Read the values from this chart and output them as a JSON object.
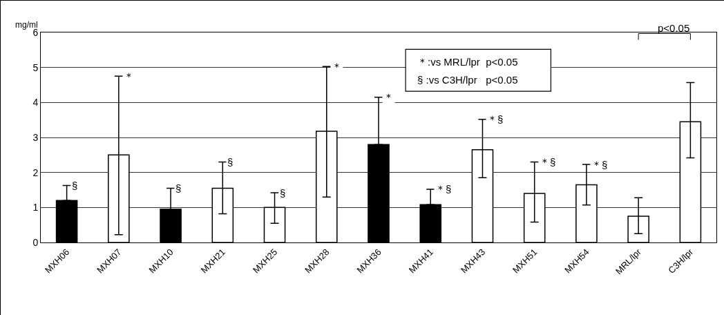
{
  "chart_data": {
    "type": "bar",
    "ylabel": "mg/ml",
    "categories": [
      "MXH06",
      "MXH07",
      "MXH10",
      "MXH21",
      "MXH25",
      "MXH28",
      "MXH36",
      "MXH41",
      "MXH43",
      "MXH51",
      "MXH54",
      "MRL/lpr",
      "C3H/lpr"
    ],
    "values": [
      1.2,
      2.5,
      0.95,
      1.55,
      1.0,
      3.18,
      2.8,
      1.08,
      2.65,
      1.4,
      1.65,
      0.75,
      3.45
    ],
    "colors": [
      "#000000",
      "#ffffff",
      "#000000",
      "#ffffff",
      "#ffffff",
      "#ffffff",
      "#000000",
      "#000000",
      "#ffffff",
      "#ffffff",
      "#ffffff",
      "#ffffff",
      "#ffffff"
    ],
    "errors": [
      [
        1.2,
        1.63
      ],
      [
        0.22,
        4.75
      ],
      [
        0.95,
        1.55
      ],
      [
        0.82,
        2.3
      ],
      [
        0.55,
        1.42
      ],
      [
        1.3,
        5.03
      ],
      [
        2.8,
        4.15
      ],
      [
        1.08,
        1.52
      ],
      [
        1.85,
        3.52
      ],
      [
        0.58,
        2.3
      ],
      [
        1.07,
        2.23
      ],
      [
        0.25,
        1.28
      ],
      [
        2.42,
        4.57
      ]
    ],
    "ylim": [
      0,
      6
    ],
    "yticks": [
      0,
      1,
      2,
      3,
      4,
      5,
      6
    ],
    "grid": "y",
    "annotations": [
      "＊:vs MRL/lpr  p<0.05",
      "§ :vs C3H/lpr   p<0.05",
      "p<0.05",
      {
        "text": "§",
        "x": "MXH06",
        "y": 1.63
      },
      {
        "text": "＊",
        "x": "MXH07",
        "y": 4.75
      },
      {
        "text": "§",
        "x": "MXH10",
        "y": 1.55
      },
      {
        "text": "§",
        "x": "MXH21",
        "y": 2.3
      },
      {
        "text": "§",
        "x": "MXH25",
        "y": 1.42
      },
      {
        "text": "＊",
        "x": "MXH28",
        "y": 5.03
      },
      {
        "text": "＊",
        "x": "MXH36",
        "y": 4.15
      },
      {
        "text": "＊§",
        "x": "MXH41",
        "y": 1.52
      },
      {
        "text": "＊§",
        "x": "MXH43",
        "y": 3.52
      },
      {
        "text": "＊§",
        "x": "MXH51",
        "y": 2.3
      },
      {
        "text": "＊§",
        "x": "MXH54",
        "y": 2.23
      }
    ]
  }
}
